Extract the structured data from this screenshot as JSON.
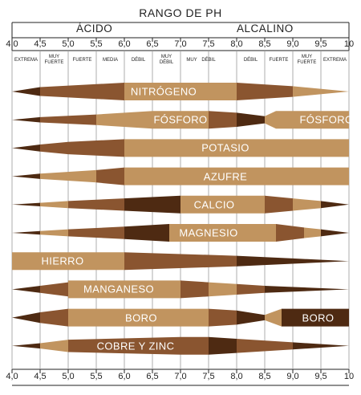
{
  "title": "RANGO DE PH",
  "left_label": "ÁCIDO",
  "right_label": "ALCALINO",
  "ticks": [
    "4,0",
    "4,5",
    "5,0",
    "5,5",
    "6,0",
    "6,5",
    "7,0",
    "7,5",
    "8,0",
    "8,5",
    "9,0",
    "9,5",
    "10"
  ],
  "categories": [
    "EXTREMA",
    "MUY\nFUERTE",
    "FUERTE",
    "MEDIA",
    "DÉBIL",
    "MUY\nDÉBIL",
    "MUY",
    "DÉBIL",
    "DÉBIL",
    "FUERTE",
    "MUY\nFUERTE",
    "EXTREMA"
  ],
  "colors": {
    "dark": "#4e2a12",
    "medium": "#8a5530",
    "light": "#c1945f",
    "pale": "#dcb88a",
    "line": "#999999"
  },
  "chart_data": {
    "type": "diagram",
    "x_unit": "pH",
    "x_range": [
      4.0,
      10.0
    ],
    "nutrients": [
      {
        "name": "NITRÓGENO",
        "label_x": 6.7,
        "segments": [
          [
            4.0,
            4.5,
            "dark",
            0,
            0.5
          ],
          [
            4.5,
            6.0,
            "medium",
            0.5,
            1
          ],
          [
            6.0,
            8.0,
            "light",
            1,
            1
          ],
          [
            8.0,
            9.0,
            "medium",
            1,
            0.6
          ],
          [
            9.0,
            10.0,
            "light",
            0.6,
            0
          ]
        ]
      },
      {
        "name": "FÓSFORO",
        "label_x": 7.0,
        "segments": [
          [
            4.0,
            4.5,
            "dark",
            0,
            0.3
          ],
          [
            4.5,
            5.5,
            "medium",
            0.3,
            0.6
          ],
          [
            5.5,
            6.5,
            "light",
            0.6,
            1
          ],
          [
            6.5,
            7.5,
            "light",
            1,
            1
          ],
          [
            7.5,
            8.0,
            "medium",
            1,
            0.8
          ],
          [
            8.0,
            8.5,
            "dark",
            0.8,
            0.4
          ],
          [
            8.5,
            8.7,
            "light",
            0.4,
            1
          ],
          [
            8.7,
            10.0,
            "light",
            1,
            1
          ]
        ]
      },
      {
        "name": "FÓSFORO",
        "label_x": 9.6,
        "secondary": true
      },
      {
        "name": "POTASIO",
        "label_x": 7.8,
        "segments": [
          [
            4.0,
            4.5,
            "dark",
            0,
            0.4
          ],
          [
            4.5,
            5.0,
            "medium",
            0.4,
            0.7
          ],
          [
            5.0,
            6.0,
            "medium",
            0.7,
            1
          ],
          [
            6.0,
            10.0,
            "light",
            1,
            1
          ]
        ]
      },
      {
        "name": "AZUFRE",
        "label_x": 7.8,
        "segments": [
          [
            4.0,
            4.5,
            "dark",
            0,
            0.3
          ],
          [
            4.5,
            5.5,
            "light",
            0.3,
            0.7
          ],
          [
            5.5,
            6.0,
            "medium",
            0.7,
            1
          ],
          [
            6.0,
            10.0,
            "light",
            1,
            1
          ]
        ]
      },
      {
        "name": "CALCIO",
        "label_x": 7.6,
        "segments": [
          [
            4.0,
            4.5,
            "dark",
            0,
            0.2
          ],
          [
            4.5,
            5.0,
            "light",
            0.2,
            0.4
          ],
          [
            5.0,
            6.0,
            "medium",
            0.4,
            0.7
          ],
          [
            6.0,
            7.0,
            "dark",
            0.7,
            1
          ],
          [
            7.0,
            8.5,
            "light",
            1,
            1
          ],
          [
            8.5,
            9.0,
            "medium",
            1,
            0.7
          ],
          [
            9.0,
            9.5,
            "light",
            0.7,
            0.4
          ],
          [
            9.5,
            10.0,
            "dark",
            0.4,
            0
          ]
        ]
      },
      {
        "name": "MAGNESIO",
        "label_x": 7.5,
        "segments": [
          [
            4.0,
            4.5,
            "dark",
            0,
            0.2
          ],
          [
            4.5,
            5.0,
            "light",
            0.2,
            0.4
          ],
          [
            5.0,
            6.0,
            "medium",
            0.4,
            0.7
          ],
          [
            6.0,
            6.8,
            "dark",
            0.7,
            1
          ],
          [
            6.8,
            8.7,
            "light",
            1,
            1
          ],
          [
            8.7,
            9.2,
            "medium",
            1,
            0.6
          ],
          [
            9.2,
            9.5,
            "light",
            0.6,
            0.4
          ],
          [
            9.5,
            10.0,
            "dark",
            0.4,
            0
          ]
        ]
      },
      {
        "name": "HIERRO",
        "label_x": 4.9,
        "segments": [
          [
            4.0,
            6.0,
            "light",
            1,
            1
          ],
          [
            6.0,
            8.0,
            "medium",
            1,
            0.6
          ],
          [
            8.0,
            9.0,
            "dark",
            0.6,
            0.3
          ],
          [
            9.0,
            10.0,
            "dark",
            0.3,
            0
          ]
        ]
      },
      {
        "name": "MANGANESO",
        "label_x": 5.9,
        "segments": [
          [
            4.0,
            4.5,
            "dark",
            0,
            0.4
          ],
          [
            4.5,
            5.0,
            "medium",
            0.4,
            0.8
          ],
          [
            5.0,
            7.0,
            "light",
            1,
            1
          ],
          [
            7.0,
            7.5,
            "medium",
            1,
            0.8
          ],
          [
            7.5,
            8.0,
            "light",
            0.8,
            0.6
          ],
          [
            8.0,
            8.5,
            "medium",
            0.6,
            0.4
          ],
          [
            8.5,
            10.0,
            "dark",
            0.4,
            0
          ]
        ]
      },
      {
        "name": "BORO",
        "label_x": 6.3,
        "segments": [
          [
            4.0,
            4.5,
            "dark",
            0,
            0.6
          ],
          [
            4.5,
            5.0,
            "medium",
            0.6,
            1
          ],
          [
            5.0,
            7.5,
            "light",
            1,
            1
          ],
          [
            7.5,
            8.0,
            "medium",
            1,
            0.8
          ],
          [
            8.0,
            8.5,
            "dark",
            0.8,
            0.3
          ],
          [
            8.5,
            8.8,
            "light",
            0.3,
            1
          ],
          [
            8.8,
            10.0,
            "dark",
            1,
            1
          ]
        ]
      },
      {
        "name": "BORO",
        "label_x": 9.45,
        "secondary": true
      },
      {
        "name": "COBRE Y ZINC",
        "label_x": 6.2,
        "segments": [
          [
            4.0,
            4.5,
            "dark",
            0,
            0.3
          ],
          [
            4.5,
            5.0,
            "light",
            0.3,
            0.7
          ],
          [
            5.0,
            7.0,
            "medium",
            0.7,
            1
          ],
          [
            7.0,
            7.5,
            "medium",
            1,
            1
          ],
          [
            7.5,
            8.0,
            "dark",
            1,
            0.8
          ],
          [
            8.0,
            9.0,
            "medium",
            0.8,
            0.4
          ],
          [
            9.0,
            10.0,
            "dark",
            0.4,
            0
          ]
        ]
      }
    ]
  }
}
